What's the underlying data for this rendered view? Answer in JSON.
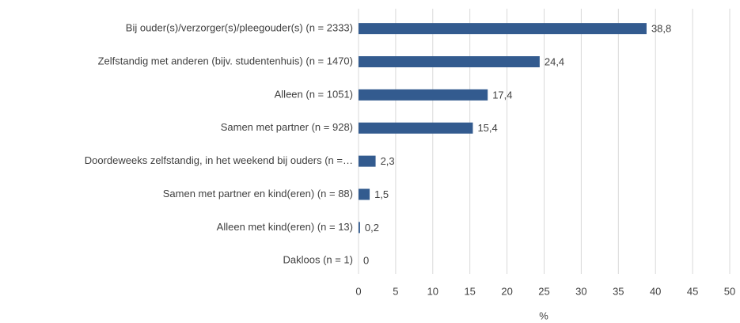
{
  "chart_data": {
    "type": "barh",
    "categories": [
      "Bij ouder(s)/verzorger(s)/pleegouder(s) (n = 2333)",
      "Zelfstandig met anderen (bijv. studentenhuis) (n = 1470)",
      "Alleen (n = 1051)",
      "Samen met partner (n = 928)",
      "Doordeweeks zelfstandig, in het weekend bij ouders (n =…",
      "Samen met partner en kind(eren) (n = 88)",
      "Alleen met kind(eren) (n = 13)",
      "Dakloos (n = 1)"
    ],
    "values": [
      38.8,
      24.4,
      17.4,
      15.4,
      2.3,
      1.5,
      0.2,
      0
    ],
    "value_labels": [
      "38,8",
      "24,4",
      "17,4",
      "15,4",
      "2,3",
      "1,5",
      "0,2",
      "0"
    ],
    "color": "#335b8f",
    "xlabel": "%",
    "xlim": [
      0,
      50
    ],
    "xticks": [
      0,
      5,
      10,
      15,
      20,
      25,
      30,
      35,
      40,
      45,
      50
    ],
    "grid": true
  }
}
